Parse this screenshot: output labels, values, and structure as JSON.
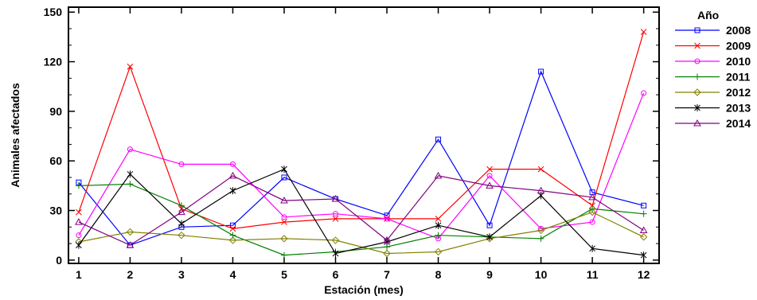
{
  "chart_data": {
    "type": "line",
    "xlabel": "Estación (mes)",
    "ylabel": "Animales afectados",
    "legend_title": "Año",
    "legend_position": "right",
    "grid": false,
    "x": [
      1,
      2,
      3,
      4,
      5,
      6,
      7,
      8,
      9,
      10,
      11,
      12
    ],
    "x_ticks": [
      "1",
      "2",
      "3",
      "4",
      "5",
      "6",
      "7",
      "8",
      "9",
      "10",
      "11",
      "12"
    ],
    "xlim": [
      0.8,
      12.3
    ],
    "ylim": [
      -2,
      153
    ],
    "y_ticks": [
      "0",
      "30",
      "60",
      "90",
      "120",
      "150"
    ],
    "series": [
      {
        "name": "2008",
        "color": "#0000ff",
        "marker": "square",
        "values": [
          47,
          9,
          20,
          21,
          50,
          37,
          27,
          73,
          21,
          114,
          41,
          33
        ]
      },
      {
        "name": "2009",
        "color": "#ff0000",
        "marker": "x",
        "values": [
          29,
          117,
          31,
          19,
          23,
          25,
          25,
          25,
          55,
          55,
          33,
          138
        ]
      },
      {
        "name": "2010",
        "color": "#ff00ff",
        "marker": "circle",
        "values": [
          15,
          67,
          58,
          58,
          26,
          28,
          25,
          13,
          51,
          19,
          23,
          101
        ]
      },
      {
        "name": "2011",
        "color": "#008000",
        "marker": "plus",
        "values": [
          45,
          46,
          33,
          15,
          3,
          5,
          8,
          15,
          14,
          13,
          31,
          28
        ]
      },
      {
        "name": "2012",
        "color": "#808000",
        "marker": "diamond",
        "values": [
          11,
          17,
          15,
          12,
          13,
          12,
          4,
          5,
          13,
          18,
          29,
          14
        ]
      },
      {
        "name": "2013",
        "color": "#000000",
        "marker": "star",
        "values": [
          9,
          52,
          22,
          42,
          55,
          4,
          11,
          21,
          14,
          39,
          7,
          3
        ]
      },
      {
        "name": "2014",
        "color": "#800080",
        "marker": "triangle",
        "values": [
          23,
          9,
          29,
          51,
          36,
          37,
          12,
          51,
          45,
          42,
          38,
          18
        ]
      }
    ]
  }
}
